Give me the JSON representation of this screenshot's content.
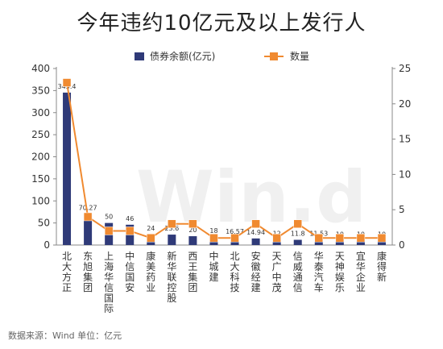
{
  "title": "今年违约10亿元及以上发行人",
  "source_note": "数据来源：Wind   单位：亿元",
  "watermark": "Win.d",
  "colors": {
    "bar": "#2f3a78",
    "line": "#f08a30",
    "axis": "#888888",
    "grid": "#e6e6e6",
    "label": "#333333"
  },
  "chart_data": {
    "type": "bar+line",
    "categories": [
      "北大方正",
      "东旭集团",
      "上海华信国际",
      "中信国安",
      "康美药业",
      "新华联控股",
      "西王集团",
      "中城建",
      "北大科技",
      "安徽经建",
      "天广中茂",
      "信威通信",
      "华泰汽车",
      "天神娱乐",
      "宜华企业",
      "康得新"
    ],
    "series": [
      {
        "name": "债券余额(亿元)",
        "kind": "bar",
        "axis": "left",
        "values": [
          345.4,
          70.27,
          50,
          46,
          24,
          23.6,
          20,
          18,
          16.57,
          14.94,
          12,
          11.8,
          11.53,
          10,
          10,
          10
        ],
        "labels": [
          "345.4",
          "70.27",
          "50",
          "46",
          "24",
          "23.6",
          "20",
          "18",
          "16.57",
          "14.94",
          "12",
          "11.8",
          "11.53",
          "10",
          "10",
          "10"
        ]
      },
      {
        "name": "数量",
        "kind": "line",
        "axis": "right",
        "values": [
          23,
          4,
          2,
          2,
          1,
          3,
          3,
          1,
          1,
          3,
          1,
          3,
          1,
          1,
          1,
          1
        ]
      }
    ],
    "left_axis": {
      "min": 0,
      "max": 400,
      "ticks": [
        0,
        50,
        100,
        150,
        200,
        250,
        300,
        350,
        400
      ]
    },
    "right_axis": {
      "min": 0,
      "max": 25,
      "ticks": [
        0,
        5,
        10,
        15,
        20,
        25
      ]
    },
    "legend_position": "top-center",
    "grid": false
  }
}
